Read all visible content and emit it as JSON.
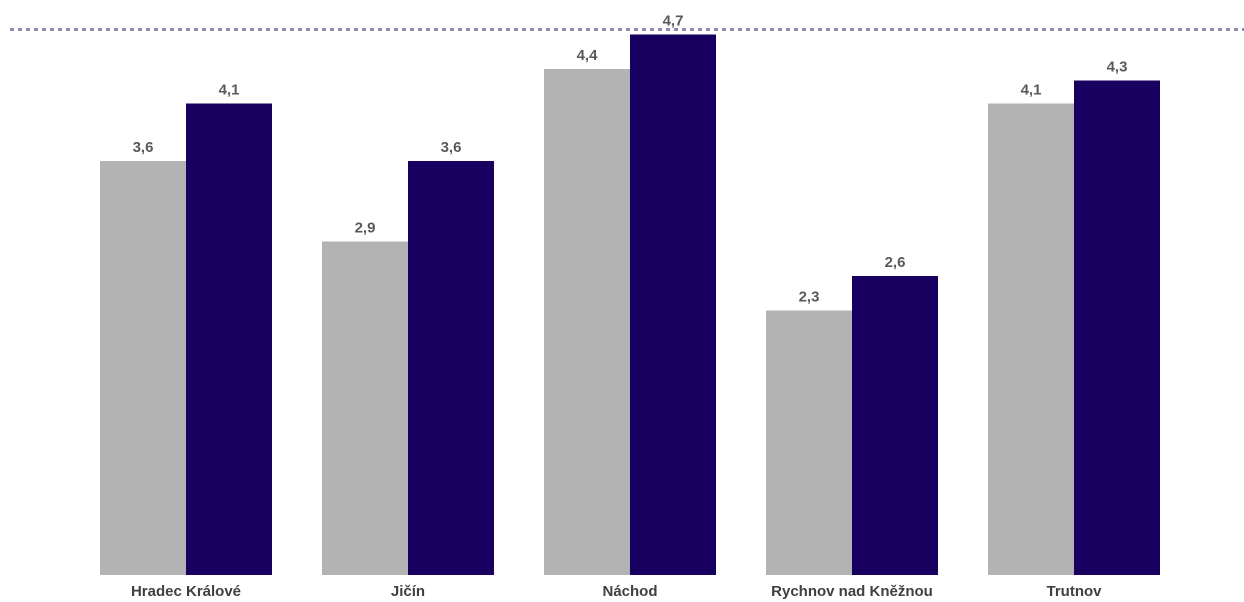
{
  "chart_data": {
    "type": "bar",
    "title": "",
    "xlabel": "",
    "ylabel": "",
    "categories": [
      "Hradec Králové",
      "Jičín",
      "Náchod",
      "Rychnov nad Kněžnou",
      "Trutnov"
    ],
    "series": [
      {
        "color": "#b3b3b3",
        "values": [
          3.6,
          2.9,
          4.4,
          2.3,
          4.1
        ],
        "value_labels": [
          "3,6",
          "2,9",
          "4,4",
          "2,3",
          "4,1"
        ]
      },
      {
        "color": "#170060",
        "values": [
          4.1,
          3.6,
          4.7,
          2.6,
          4.3
        ],
        "value_labels": [
          "4,1",
          "3,6",
          "4,7",
          "2,6",
          "4,3"
        ]
      }
    ],
    "ylim": [
      0,
      4.7
    ],
    "reference_line": {
      "style": "dotted",
      "color": "#8c8cb4"
    },
    "grid": false,
    "legend": "none",
    "data_labels": true
  }
}
